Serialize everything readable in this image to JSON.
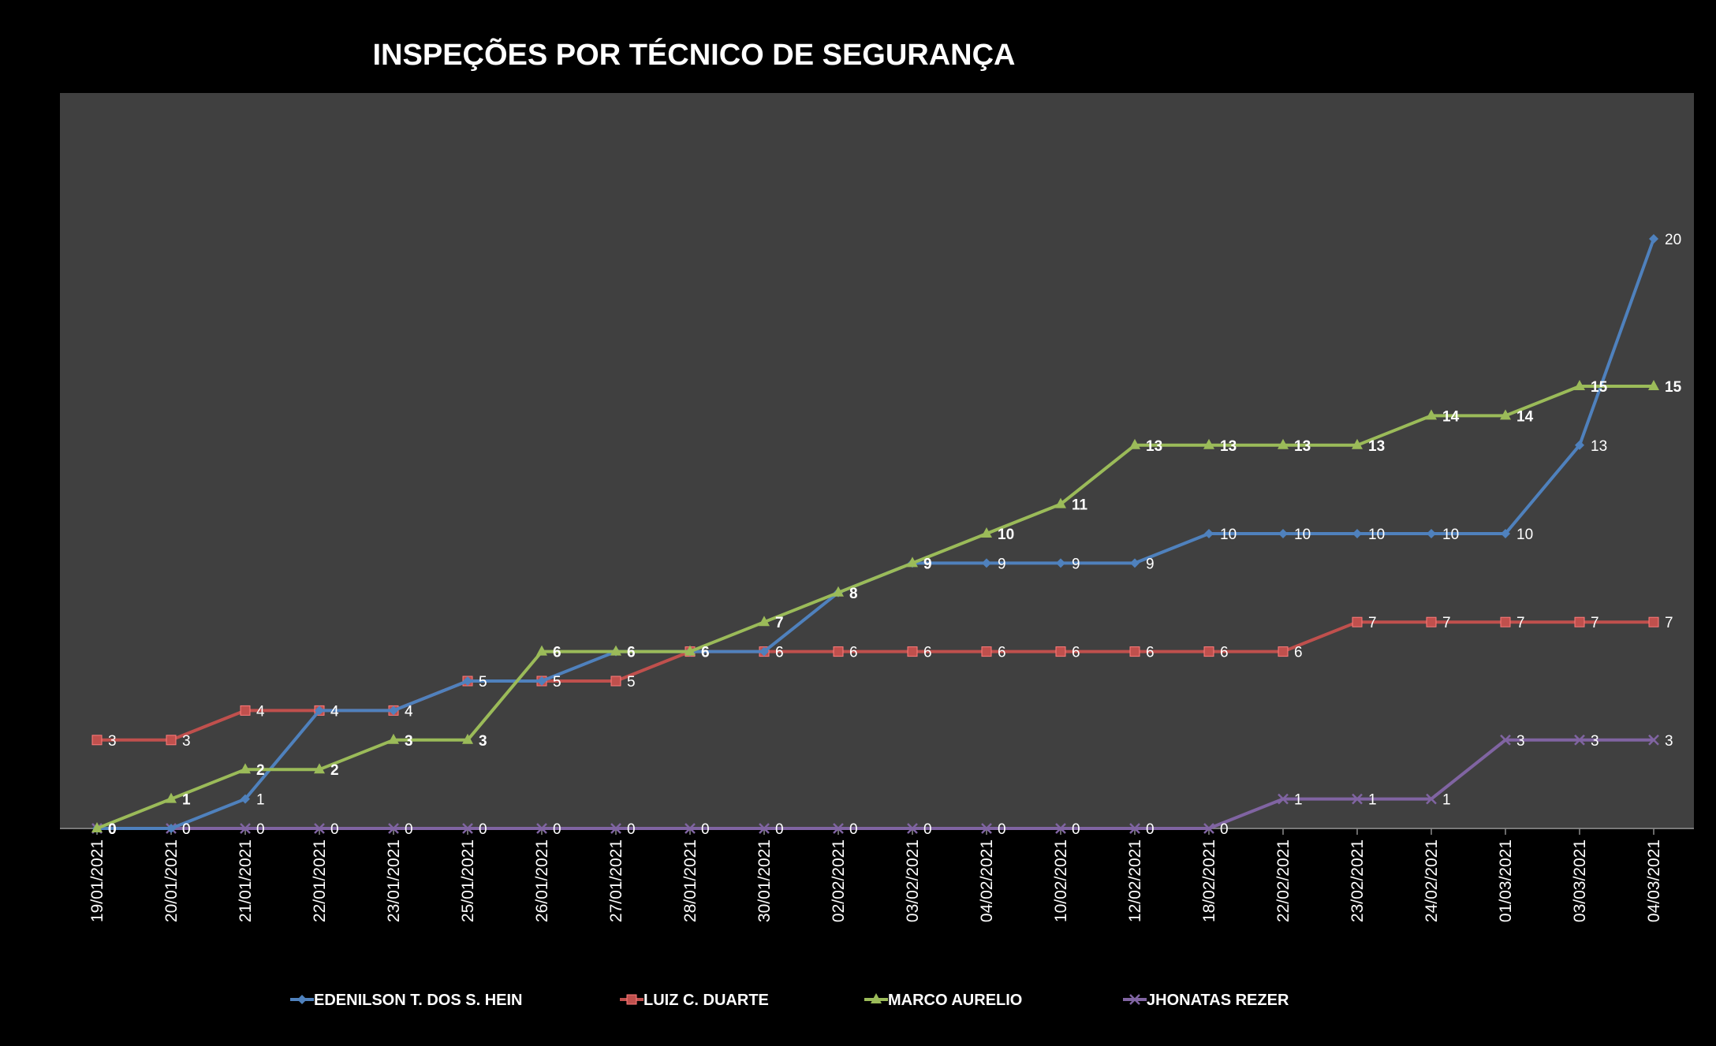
{
  "chart_data": {
    "type": "line",
    "title": "INSPEÇÕES POR TÉCNICO DE SEGURANÇA",
    "xlabel": "",
    "ylabel": "",
    "ylim": [
      0,
      25
    ],
    "grid": false,
    "legend_position": "bottom",
    "plot_background": "#404040",
    "background": "#000000",
    "categories": [
      "19/01/2021",
      "20/01/2021",
      "21/01/2021",
      "22/01/2021",
      "23/01/2021",
      "25/01/2021",
      "26/01/2021",
      "27/01/2021",
      "28/01/2021",
      "30/01/2021",
      "02/02/2021",
      "03/02/2021",
      "04/02/2021",
      "10/02/2021",
      "12/02/2021",
      "18/02/2021",
      "22/02/2021",
      "23/02/2021",
      "24/02/2021",
      "01/03/2021",
      "03/03/2021",
      "04/03/2021"
    ],
    "series": [
      {
        "name": "EDENILSON T. DOS S. HEIN",
        "color": "#4f81bd",
        "marker": "diamond",
        "label_bold": false,
        "values": [
          0,
          0,
          1,
          4,
          4,
          5,
          5,
          6,
          6,
          6,
          8,
          9,
          9,
          9,
          9,
          10,
          10,
          10,
          10,
          10,
          13,
          20
        ]
      },
      {
        "name": "LUIZ C. DUARTE",
        "color": "#c0504d",
        "marker": "square",
        "label_bold": false,
        "values": [
          3,
          3,
          4,
          4,
          4,
          5,
          5,
          5,
          6,
          6,
          6,
          6,
          6,
          6,
          6,
          6,
          6,
          7,
          7,
          7,
          7,
          7
        ]
      },
      {
        "name": "MARCO AURELIO",
        "color": "#9bbb59",
        "marker": "triangle",
        "label_bold": true,
        "values": [
          0,
          1,
          2,
          2,
          3,
          3,
          6,
          6,
          6,
          7,
          8,
          9,
          10,
          11,
          13,
          13,
          13,
          13,
          14,
          14,
          15,
          15
        ]
      },
      {
        "name": "JHONATAS REZER",
        "color": "#8064a2",
        "marker": "x",
        "label_bold": false,
        "values": [
          0,
          0,
          0,
          0,
          0,
          0,
          0,
          0,
          0,
          0,
          0,
          0,
          0,
          0,
          0,
          0,
          1,
          1,
          1,
          3,
          3,
          3
        ]
      }
    ]
  }
}
